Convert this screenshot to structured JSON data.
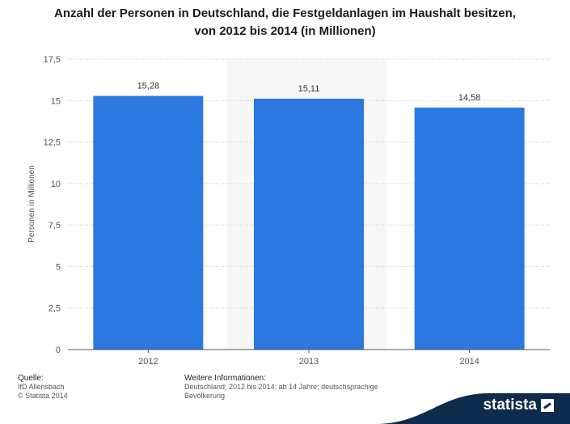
{
  "chart_data": {
    "type": "bar",
    "title_lines": [
      "Anzahl der Personen in Deutschland, die Festgeldanlagen im Haushalt besitzen,",
      "von 2012 bis 2014 (in Millionen)"
    ],
    "categories": [
      "2012",
      "2013",
      "2014"
    ],
    "values": [
      15.28,
      15.11,
      14.58
    ],
    "value_labels": [
      "15,28",
      "15,11",
      "14,58"
    ],
    "ylabel": "Personen in Millionen",
    "ylim": [
      0,
      17.5
    ],
    "yticks": [
      0,
      2.5,
      5,
      7.5,
      10,
      12.5,
      15,
      17.5
    ],
    "ytick_labels": [
      "0",
      "2,5",
      "5",
      "7,5",
      "10",
      "12,5",
      "15",
      "17,5"
    ],
    "bar_color": "#2b78e0",
    "grid": true
  },
  "footer": {
    "source_heading": "Quelle:",
    "source_lines": [
      "IfD Allensbach",
      "© Statista 2014"
    ],
    "info_heading": "Weitere Informationen:",
    "info_text": "Deutschland; 2012 bis 2014; ab 14 Jahre; deutschsprachige Bevölkerung"
  },
  "brand": {
    "name": "statista",
    "color": "#0f2b4c"
  }
}
